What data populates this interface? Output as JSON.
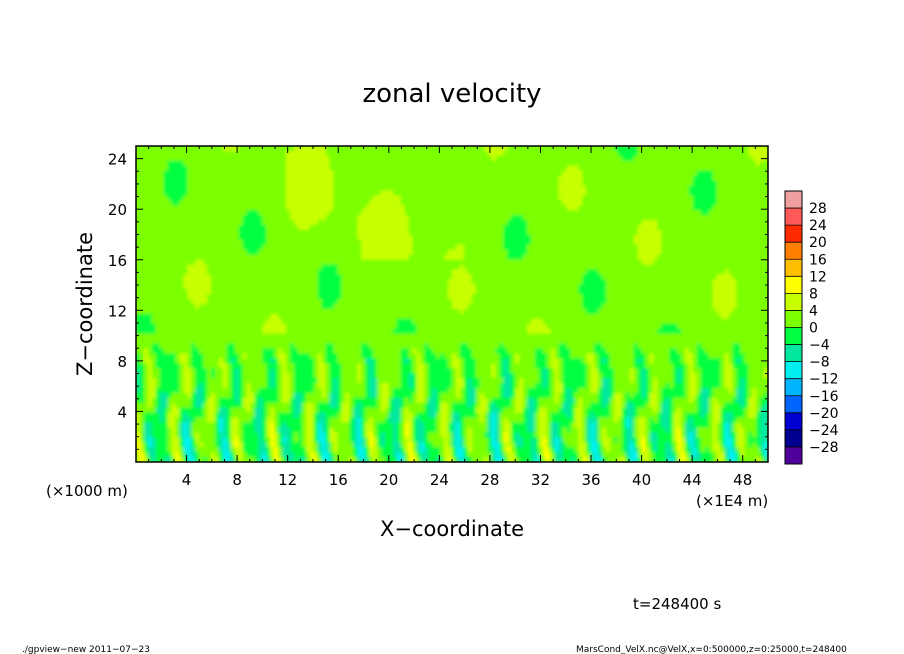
{
  "chart_data": {
    "type": "heatmap",
    "title": "zonal velocity",
    "xlabel": "X−coordinate",
    "ylabel": "Z−coordinate",
    "x_unit_note": "(×1E4 m)",
    "y_unit_note": "(×1000 m)",
    "xlim": [
      0,
      50
    ],
    "ylim": [
      0,
      25
    ],
    "x_ticks": [
      4,
      8,
      12,
      16,
      20,
      24,
      28,
      32,
      36,
      40,
      44,
      48
    ],
    "y_ticks": [
      4,
      8,
      12,
      16,
      20,
      24
    ],
    "colorbar": {
      "labels": [
        "28",
        "24",
        "20",
        "16",
        "12",
        "8",
        "4",
        "0",
        "−4",
        "−8",
        "−12",
        "−16",
        "−20",
        "−24",
        "−28"
      ],
      "levels": [
        28,
        24,
        20,
        16,
        12,
        8,
        4,
        0,
        -4,
        -8,
        -12,
        -16,
        -20,
        -24,
        -28
      ],
      "colors": [
        "#f0a0a0",
        "#ff5a5a",
        "#ff2a00",
        "#ff7f00",
        "#ffbf00",
        "#ffff00",
        "#c8ff00",
        "#7cff00",
        "#00ff40",
        "#00e8a0",
        "#00f0f0",
        "#00b4ff",
        "#0064ff",
        "#0000d0",
        "#000090",
        "#50009a"
      ]
    },
    "field_description_values": {
      "background": 2,
      "lower_layer_top_z": 8,
      "lower_layer_min": -12,
      "lower_layer_max": 10
    }
  },
  "annotations": {
    "time": "t=248400 s",
    "footer_left": "./gpview−new   2011−07−23",
    "footer_right": "MarsCond_VelX.nc@VelX,x=0:500000,z=0:25000,t=248400"
  }
}
